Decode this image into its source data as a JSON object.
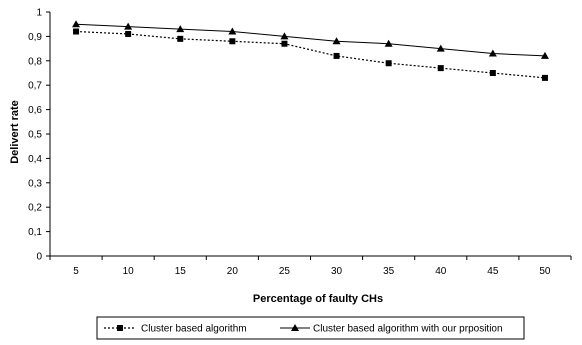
{
  "chart_data": {
    "type": "line",
    "xlabel": "Percentage of faulty CHs",
    "ylabel": "Delivert rate",
    "categories": [
      "5",
      "10",
      "15",
      "20",
      "25",
      "30",
      "35",
      "40",
      "45",
      "50"
    ],
    "y_ticks": [
      "0",
      "0,1",
      "0,2",
      "0,3",
      "0,4",
      "0,5",
      "0,6",
      "0,7",
      "0,8",
      "0,9",
      "1"
    ],
    "ylim": [
      0,
      1
    ],
    "grid": false,
    "legend_position": "bottom",
    "series": [
      {
        "name": "Cluster based algorithm",
        "marker": "square",
        "line_style": "dotted",
        "color": "#000000",
        "values": [
          0.92,
          0.91,
          0.89,
          0.88,
          0.87,
          0.82,
          0.79,
          0.77,
          0.75,
          0.73
        ]
      },
      {
        "name": "Cluster based algorithm with our prposition",
        "marker": "triangle",
        "line_style": "solid",
        "color": "#000000",
        "values": [
          0.95,
          0.94,
          0.93,
          0.92,
          0.9,
          0.88,
          0.87,
          0.85,
          0.83,
          0.82
        ]
      }
    ]
  }
}
